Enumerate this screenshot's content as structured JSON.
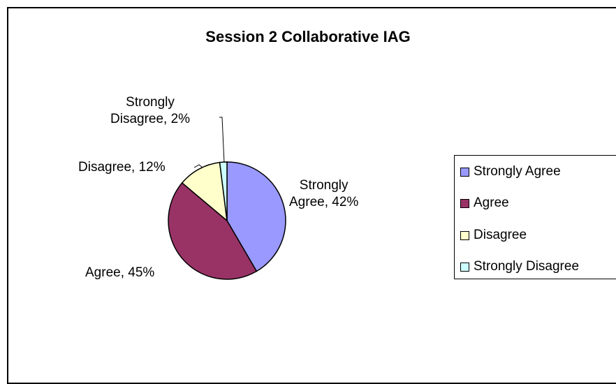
{
  "chart_data": {
    "type": "pie",
    "title": "Session 2 Collaborative IAG",
    "slices": [
      {
        "label": "Strongly Agree",
        "value": 42,
        "color": "#9999ff",
        "data_label_line1": "Strongly",
        "data_label_line2": "Agree, 42%"
      },
      {
        "label": "Agree",
        "value": 45,
        "color": "#993366",
        "data_label_line1": "",
        "data_label_line2": "Agree, 45%"
      },
      {
        "label": "Disagree",
        "value": 12,
        "color": "#ffffcc",
        "data_label_line1": "",
        "data_label_line2": "Disagree, 12%"
      },
      {
        "label": "Strongly Disagree",
        "value": 2,
        "color": "#ccffff",
        "data_label_line1": "Strongly",
        "data_label_line2": "Disagree, 2%"
      }
    ],
    "legend": {
      "position": "right",
      "items": [
        "Strongly Agree",
        "Agree",
        "Disagree",
        "Strongly Disagree"
      ]
    }
  }
}
